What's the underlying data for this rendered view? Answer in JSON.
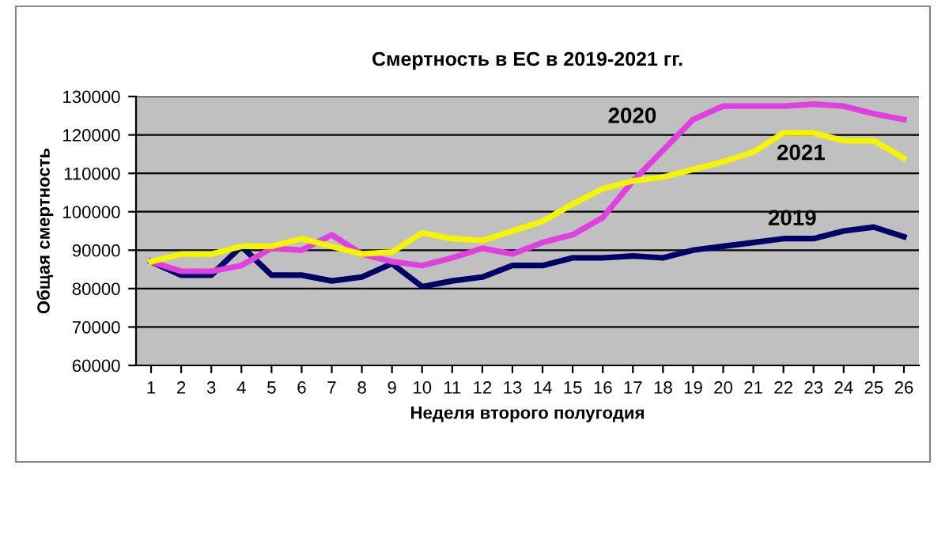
{
  "chart_data": {
    "type": "line",
    "title": "Смертность в ЕС в 2019-2021 гг.",
    "xlabel": "Неделя второго полугодия",
    "ylabel": "Общая смертность",
    "categories": [
      "1",
      "2",
      "3",
      "4",
      "5",
      "6",
      "7",
      "8",
      "9",
      "10",
      "11",
      "12",
      "13",
      "14",
      "15",
      "16",
      "17",
      "18",
      "19",
      "20",
      "21",
      "22",
      "23",
      "24",
      "25",
      "26"
    ],
    "series": [
      {
        "name": "2019",
        "color": "#000066",
        "values": [
          87000,
          83500,
          83500,
          91000,
          83500,
          83500,
          82000,
          83000,
          86500,
          80500,
          82000,
          83000,
          86000,
          86000,
          88000,
          88000,
          88500,
          88000,
          90000,
          91000,
          92000,
          93000,
          93000,
          95000,
          96000,
          93500
        ]
      },
      {
        "name": "2020",
        "color": "#e040e0",
        "values": [
          87000,
          84500,
          84500,
          86000,
          90500,
          90000,
          94000,
          89000,
          87000,
          86000,
          88000,
          90500,
          89000,
          92000,
          94000,
          98500,
          108000,
          116000,
          124000,
          127500,
          127500,
          127500,
          128000,
          127500,
          125500,
          124000
        ]
      },
      {
        "name": "2021",
        "color": "#f5f500",
        "values": [
          87000,
          89000,
          89000,
          91000,
          91000,
          93000,
          91000,
          89000,
          89500,
          94500,
          93000,
          92500,
          95000,
          97500,
          102000,
          106000,
          108000,
          109000,
          111000,
          113000,
          115500,
          120500,
          120500,
          118500,
          118500,
          114000
        ]
      }
    ],
    "ylim": [
      60000,
      130000
    ],
    "yticks": [
      60000,
      70000,
      80000,
      90000,
      100000,
      110000,
      120000,
      130000
    ],
    "grid": "y",
    "legend": false,
    "marker": "none",
    "line_style": "solid"
  }
}
